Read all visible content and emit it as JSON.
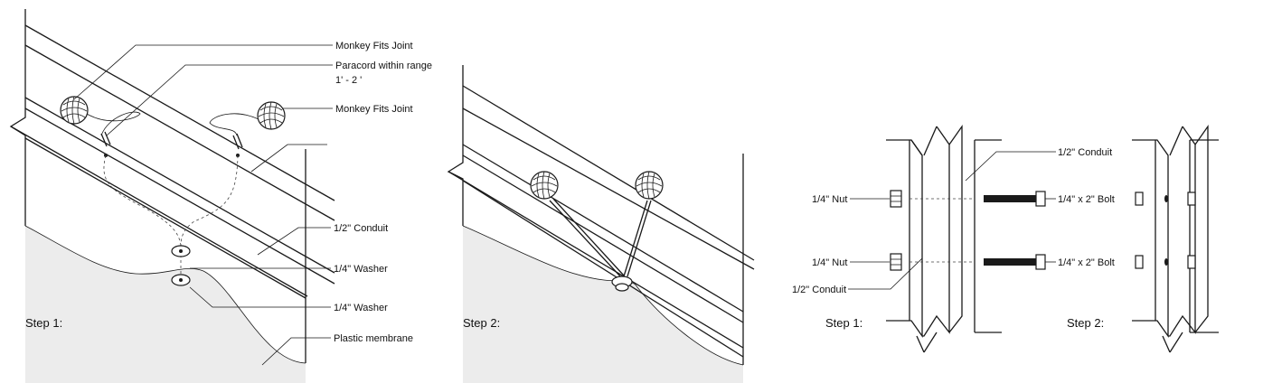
{
  "panel1": {
    "step_label": "Step 1:",
    "labels": {
      "monkey_fits_1": "Monkey Fits Joint",
      "paracord_line1": "Paracord within range",
      "paracord_line2": "1' - 2 '",
      "monkey_fits_2": "Monkey Fits Joint",
      "conduit": "1/2\" Conduit",
      "washer_1": "1/4\" Washer",
      "washer_2": "1/4\" Washer",
      "membrane": "Plastic membrane"
    }
  },
  "panel2": {
    "step_label": "Step 2:"
  },
  "panel3": {
    "labels": {
      "conduit_top": "1/2\" Conduit",
      "nut_1": "1/4\" Nut",
      "bolt_1": "1/4\" x 2\" Bolt",
      "nut_2": "1/4\" Nut",
      "bolt_2": "1/4\" x 2\" Bolt",
      "conduit_bottom": "1/2\" Conduit"
    },
    "step1_label": "Step 1:",
    "step2_label": "Step 2:"
  },
  "colors": {
    "line": "#1a1a1a",
    "membrane": "#ececec",
    "background": "#ffffff"
  }
}
